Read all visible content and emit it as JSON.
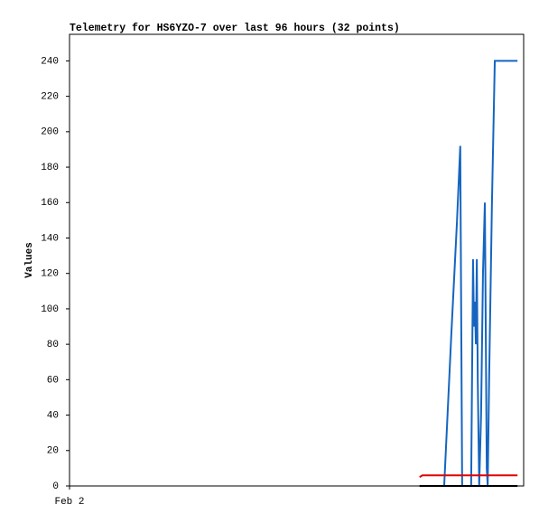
{
  "chart_data": {
    "type": "line",
    "title": "Telemetry for HS6YZO-7 over last 96 hours (32 points)",
    "y_label": "Values",
    "x": [
      74.0,
      74.6,
      75.4,
      76.1,
      76.9,
      77.7,
      78.4,
      79.2,
      80.7,
      81.9,
      82.6,
      83.0,
      83.8,
      84.5,
      84.9,
      85.3,
      85.5,
      85.7,
      85.9,
      86.1,
      86.3,
      86.6,
      87.0,
      87.4,
      87.8,
      88.2,
      88.4,
      88.7,
      89.3,
      89.9,
      92.2,
      94.7
    ],
    "xlim": [
      0,
      96
    ],
    "xticks": [
      {
        "value": 0,
        "label": "Feb 2"
      }
    ],
    "ylim": [
      0,
      255
    ],
    "yticks": [
      0,
      20,
      40,
      60,
      80,
      100,
      120,
      140,
      160,
      180,
      200,
      220,
      240
    ],
    "series": [
      {
        "color": "#1565c0",
        "values": [
          0,
          0,
          0,
          0,
          0,
          0,
          0,
          0,
          85,
          149,
          192,
          0,
          0,
          0,
          0,
          128,
          90,
          104,
          80,
          128,
          60,
          0,
          40,
          120,
          160,
          10,
          0,
          60,
          160,
          240,
          240,
          240
        ]
      },
      {
        "color": "#000000",
        "values": [
          0,
          0,
          0,
          0,
          0,
          0,
          0,
          0,
          0,
          0,
          0,
          0,
          0,
          0,
          0,
          0,
          0,
          0,
          0,
          0,
          0,
          0,
          0,
          0,
          0,
          0,
          0,
          0,
          0,
          0,
          0,
          0
        ]
      },
      {
        "color": "#e00000",
        "values": [
          5,
          6,
          6,
          6,
          6,
          6,
          6,
          6,
          6,
          6,
          6,
          6,
          6,
          6,
          6,
          6,
          6,
          6,
          6,
          6,
          6,
          6,
          6,
          6,
          6,
          6,
          6,
          6,
          6,
          6,
          6,
          6
        ]
      }
    ]
  }
}
